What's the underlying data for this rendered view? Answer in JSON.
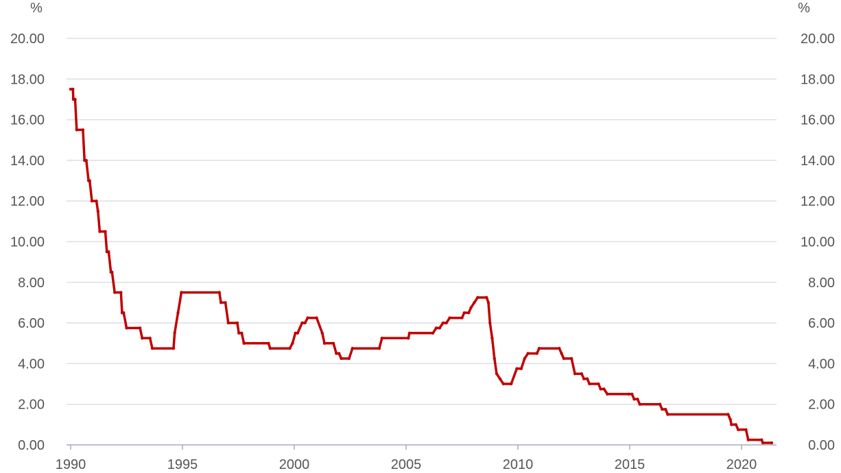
{
  "chart_data": {
    "type": "line",
    "title": "",
    "xlabel": "",
    "ylabel": "",
    "y_unit_left": "%",
    "y_unit_right": "%",
    "xlim": [
      1990,
      2021.4
    ],
    "ylim": [
      0,
      20
    ],
    "grid": true,
    "x_ticks": [
      {
        "value": 1990,
        "label": "1990"
      },
      {
        "value": 1995,
        "label": "1995"
      },
      {
        "value": 2000,
        "label": "2000"
      },
      {
        "value": 2005,
        "label": "2005"
      },
      {
        "value": 2010,
        "label": "2010"
      },
      {
        "value": 2015,
        "label": "2015"
      },
      {
        "value": 2020,
        "label": "2020"
      }
    ],
    "y_ticks": [
      {
        "value": 0,
        "label": "0.00"
      },
      {
        "value": 2,
        "label": "2.00"
      },
      {
        "value": 4,
        "label": "4.00"
      },
      {
        "value": 6,
        "label": "6.00"
      },
      {
        "value": 8,
        "label": "8.00"
      },
      {
        "value": 10,
        "label": "10.00"
      },
      {
        "value": 12,
        "label": "12.00"
      },
      {
        "value": 14,
        "label": "14.00"
      },
      {
        "value": 16,
        "label": "16.00"
      },
      {
        "value": 18,
        "label": "18.00"
      },
      {
        "value": 20,
        "label": "20.00"
      }
    ],
    "series": [
      {
        "color": "#c00000",
        "points": [
          [
            1990.0,
            17.5
          ],
          [
            1990.1,
            17.5
          ],
          [
            1990.12,
            17.0
          ],
          [
            1990.2,
            17.0
          ],
          [
            1990.27,
            15.5
          ],
          [
            1990.55,
            15.5
          ],
          [
            1990.62,
            14.0
          ],
          [
            1990.7,
            14.0
          ],
          [
            1990.8,
            13.0
          ],
          [
            1990.85,
            13.0
          ],
          [
            1990.95,
            12.0
          ],
          [
            1991.15,
            12.0
          ],
          [
            1991.22,
            11.5
          ],
          [
            1991.3,
            10.5
          ],
          [
            1991.55,
            10.5
          ],
          [
            1991.62,
            9.5
          ],
          [
            1991.7,
            9.5
          ],
          [
            1991.8,
            8.5
          ],
          [
            1991.85,
            8.5
          ],
          [
            1991.97,
            7.5
          ],
          [
            1992.25,
            7.5
          ],
          [
            1992.3,
            6.5
          ],
          [
            1992.37,
            6.5
          ],
          [
            1992.5,
            5.75
          ],
          [
            1993.1,
            5.75
          ],
          [
            1993.2,
            5.25
          ],
          [
            1993.55,
            5.25
          ],
          [
            1993.65,
            4.75
          ],
          [
            1994.6,
            4.75
          ],
          [
            1994.65,
            5.5
          ],
          [
            1994.8,
            6.5
          ],
          [
            1994.95,
            7.5
          ],
          [
            1996.65,
            7.5
          ],
          [
            1996.72,
            7.0
          ],
          [
            1996.92,
            7.0
          ],
          [
            1997.05,
            6.0
          ],
          [
            1997.45,
            6.0
          ],
          [
            1997.52,
            5.5
          ],
          [
            1997.65,
            5.5
          ],
          [
            1997.75,
            5.0
          ],
          [
            1998.85,
            5.0
          ],
          [
            1998.92,
            4.75
          ],
          [
            1999.8,
            4.75
          ],
          [
            1999.92,
            5.0
          ],
          [
            2000.05,
            5.5
          ],
          [
            2000.15,
            5.5
          ],
          [
            2000.35,
            6.0
          ],
          [
            2000.48,
            6.0
          ],
          [
            2000.6,
            6.25
          ],
          [
            2001.0,
            6.25
          ],
          [
            2001.25,
            5.5
          ],
          [
            2001.35,
            5.0
          ],
          [
            2001.75,
            5.0
          ],
          [
            2001.88,
            4.5
          ],
          [
            2002.0,
            4.5
          ],
          [
            2002.1,
            4.25
          ],
          [
            2002.45,
            4.25
          ],
          [
            2002.6,
            4.75
          ],
          [
            2003.8,
            4.75
          ],
          [
            2003.92,
            5.25
          ],
          [
            2005.1,
            5.25
          ],
          [
            2005.15,
            5.5
          ],
          [
            2006.2,
            5.5
          ],
          [
            2006.35,
            5.75
          ],
          [
            2006.5,
            5.75
          ],
          [
            2006.65,
            6.0
          ],
          [
            2006.8,
            6.0
          ],
          [
            2006.95,
            6.25
          ],
          [
            2007.5,
            6.25
          ],
          [
            2007.6,
            6.5
          ],
          [
            2007.8,
            6.5
          ],
          [
            2007.9,
            6.75
          ],
          [
            2008.05,
            7.0
          ],
          [
            2008.2,
            7.25
          ],
          [
            2008.6,
            7.25
          ],
          [
            2008.68,
            7.0
          ],
          [
            2008.75,
            6.0
          ],
          [
            2008.85,
            5.25
          ],
          [
            2008.95,
            4.25
          ],
          [
            2009.05,
            3.5
          ],
          [
            2009.2,
            3.25
          ],
          [
            2009.35,
            3.0
          ],
          [
            2009.7,
            3.0
          ],
          [
            2009.95,
            3.75
          ],
          [
            2010.15,
            3.75
          ],
          [
            2010.3,
            4.25
          ],
          [
            2010.45,
            4.5
          ],
          [
            2010.85,
            4.5
          ],
          [
            2010.95,
            4.75
          ],
          [
            2011.85,
            4.75
          ],
          [
            2011.95,
            4.5
          ],
          [
            2012.05,
            4.25
          ],
          [
            2012.4,
            4.25
          ],
          [
            2012.55,
            3.5
          ],
          [
            2012.85,
            3.5
          ],
          [
            2012.95,
            3.25
          ],
          [
            2013.1,
            3.25
          ],
          [
            2013.2,
            3.0
          ],
          [
            2013.6,
            3.0
          ],
          [
            2013.7,
            2.75
          ],
          [
            2013.85,
            2.75
          ],
          [
            2014.0,
            2.5
          ],
          [
            2014.95,
            2.5
          ],
          [
            2015.1,
            2.5
          ],
          [
            2015.2,
            2.25
          ],
          [
            2015.35,
            2.25
          ],
          [
            2015.45,
            2.0
          ],
          [
            2016.35,
            2.0
          ],
          [
            2016.45,
            1.75
          ],
          [
            2016.6,
            1.75
          ],
          [
            2016.7,
            1.5
          ],
          [
            2019.4,
            1.5
          ],
          [
            2019.5,
            1.25
          ],
          [
            2019.55,
            1.0
          ],
          [
            2019.75,
            1.0
          ],
          [
            2019.85,
            0.75
          ],
          [
            2020.2,
            0.75
          ],
          [
            2020.3,
            0.25
          ],
          [
            2020.9,
            0.25
          ],
          [
            2020.95,
            0.1
          ],
          [
            2021.35,
            0.1
          ]
        ]
      }
    ]
  }
}
